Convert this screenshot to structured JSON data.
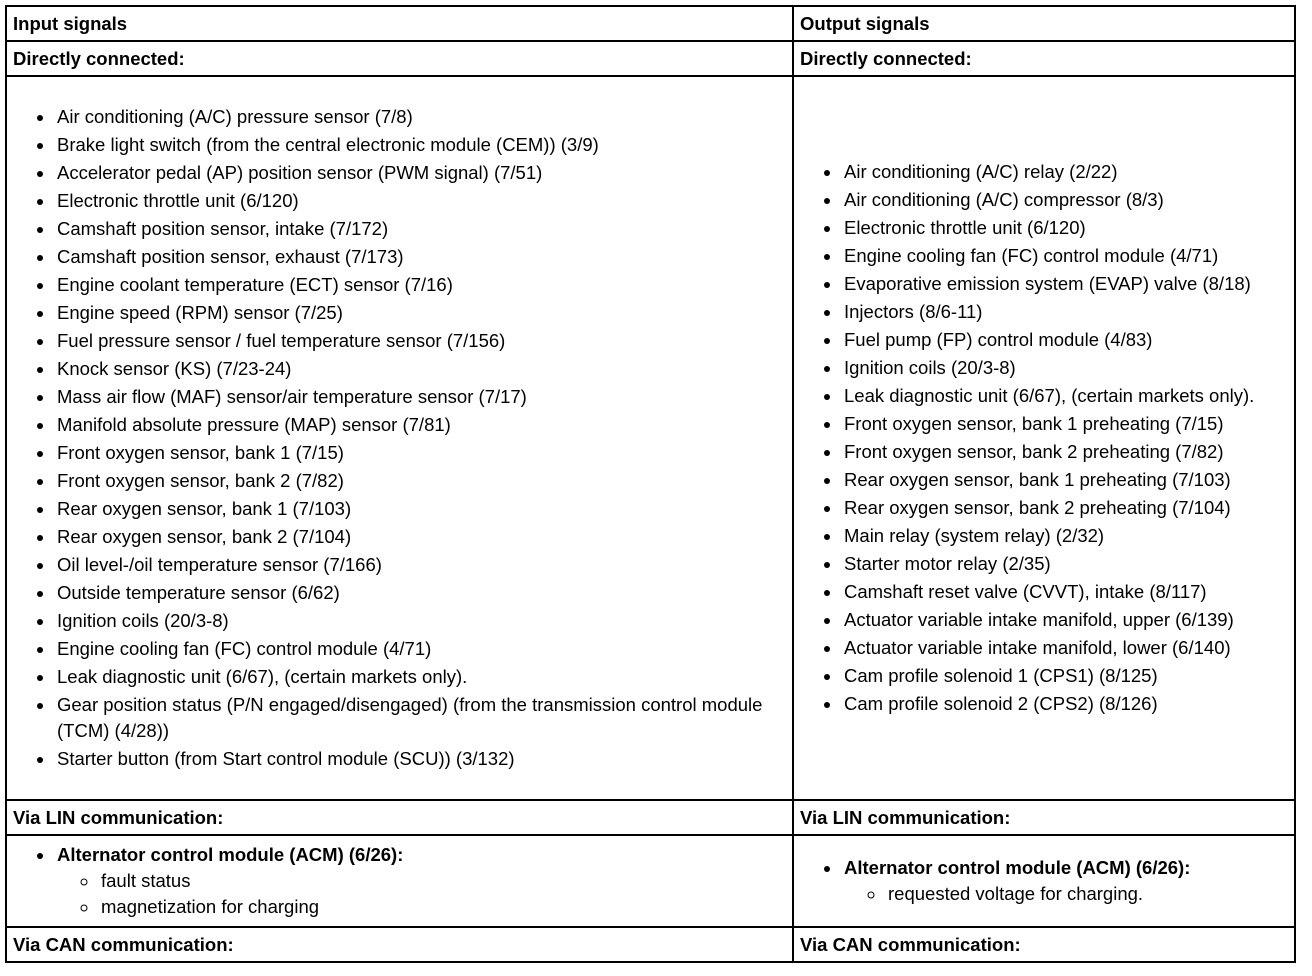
{
  "table": {
    "header": [
      "Input signals",
      "Output signals"
    ],
    "sections": [
      {
        "heading": [
          "Directly connected:",
          "Directly connected:"
        ],
        "items": [
          [
            "Air conditioning (A/C) pressure sensor (7/8)",
            "Brake light switch (from the central electronic module (CEM)) (3/9)",
            "Accelerator pedal (AP) position sensor (PWM signal) (7/51)",
            "Electronic throttle unit (6/120)",
            "Camshaft position sensor, intake (7/172)",
            "Camshaft position sensor, exhaust (7/173)",
            "Engine coolant temperature (ECT) sensor (7/16)",
            "Engine speed (RPM) sensor (7/25)",
            "Fuel pressure sensor / fuel temperature sensor (7/156)",
            "Knock sensor (KS) (7/23-24)",
            "Mass air flow (MAF) sensor/air temperature sensor (7/17)",
            "Manifold absolute pressure (MAP) sensor (7/81)",
            "Front oxygen sensor, bank 1 (7/15)",
            "Front oxygen sensor, bank 2 (7/82)",
            "Rear oxygen sensor, bank 1 (7/103)",
            "Rear oxygen sensor, bank 2 (7/104)",
            "Oil level-/oil temperature sensor (7/166)",
            "Outside temperature sensor (6/62)",
            "Ignition coils (20/3-8)",
            "Engine cooling fan (FC) control module (4/71)",
            "Leak diagnostic unit (6/67), (certain markets only).",
            "Gear position status (P/N engaged/disengaged) (from the transmission control module (TCM) (4/28))",
            "Starter button (from Start control module (SCU)) (3/132)"
          ],
          [
            "Air conditioning (A/C) relay (2/22)",
            "Air conditioning (A/C) compressor (8/3)",
            "Electronic throttle unit (6/120)",
            "Engine cooling fan (FC) control module (4/71)",
            "Evaporative emission system (EVAP) valve (8/18)",
            "Injectors (8/6-11)",
            "Fuel pump (FP) control module (4/83)",
            "Ignition coils (20/3-8)",
            "Leak diagnostic unit (6/67), (certain markets only).",
            "Front oxygen sensor, bank 1 preheating (7/15)",
            "Front oxygen sensor, bank 2 preheating (7/82)",
            "Rear oxygen sensor, bank 1 preheating (7/103)",
            "Rear oxygen sensor, bank 2 preheating (7/104)",
            "Main relay (system relay) (2/32)",
            "Starter motor relay (2/35)",
            "Camshaft reset valve (CVVT), intake (8/117)",
            "Actuator variable intake manifold, upper (6/139)",
            "Actuator variable intake manifold, lower (6/140)",
            "Cam profile solenoid 1 (CPS1) (8/125)",
            "Cam profile solenoid 2 (CPS2) (8/126)"
          ]
        ]
      },
      {
        "heading": [
          "Via LIN communication:",
          "Via LIN communication:"
        ],
        "items": [
          [
            {
              "text": "Alternator control module (ACM) (6/26):",
              "sub": [
                "fault status",
                "magnetization for charging"
              ]
            }
          ],
          [
            {
              "text": "Alternator control module (ACM) (6/26):",
              "sub": [
                "requested voltage for charging."
              ]
            }
          ]
        ]
      },
      {
        "heading": [
          "Via CAN communication:",
          "Via CAN communication:"
        ]
      }
    ]
  }
}
